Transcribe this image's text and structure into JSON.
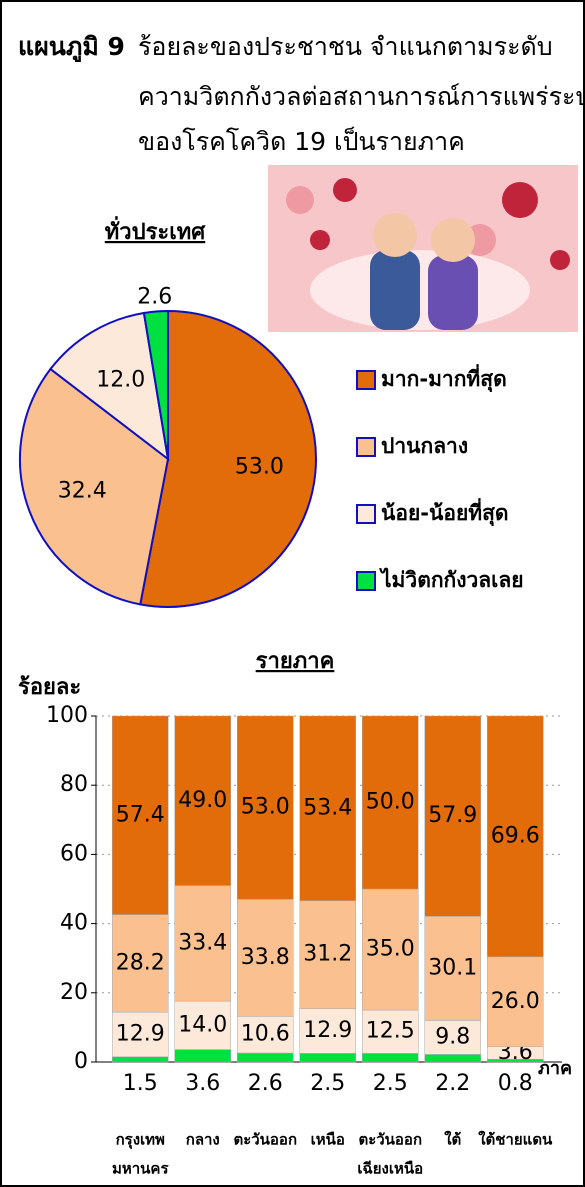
{
  "figure_label": "แผนภูมิ 9",
  "title": [
    "ร้อยละของประชาชน จำแนกตามระดับ",
    "ความวิตกกังวลต่อสถานการณ์การแพร่ระบาด",
    "ของโรคโควิด 19 เป็นรายภาค"
  ],
  "chart_data": [
    {
      "type": "pie",
      "title": "ทั่วประเทศ",
      "categories": [
        "มาก-มากที่สุด",
        "ปานกลาง",
        "น้อย-น้อยที่สุด",
        "ไม่วิตกกังวลเลย"
      ],
      "values": [
        53.0,
        32.4,
        12.0,
        2.6
      ],
      "value_labels": [
        "53.0",
        "32.4",
        "12.0",
        "2.6"
      ],
      "colors": [
        "#e26b0a",
        "#fac090",
        "#fde9d9",
        "#00e040"
      ]
    },
    {
      "type": "stacked_bar",
      "title": "รายภาค",
      "ylabel": "ร้อยละ",
      "xlabel": "ภาค",
      "categories": [
        [
          "กรุงเทพ",
          "มหานคร"
        ],
        [
          "กลาง"
        ],
        [
          "ตะวันออก"
        ],
        [
          "เหนือ"
        ],
        [
          "ตะวันออก",
          "เฉียงเหนือ"
        ],
        [
          "ใต้"
        ],
        [
          "ใต้ชายแดน"
        ]
      ],
      "series": [
        {
          "color": "#00e040",
          "values": [
            1.5,
            3.6,
            2.6,
            2.5,
            2.5,
            2.2,
            0.8
          ],
          "value_labels": [
            "1.5",
            "3.6",
            "2.6",
            "2.5",
            "2.5",
            "2.2",
            "0.8"
          ]
        },
        {
          "color": "#fde9d9",
          "values": [
            12.9,
            14.0,
            10.6,
            12.9,
            12.5,
            9.8,
            3.6
          ],
          "value_labels": [
            "12.9",
            "14.0",
            "10.6",
            "12.9",
            "12.5",
            "9.8",
            "3.6"
          ]
        },
        {
          "color": "#fac090",
          "values": [
            28.2,
            33.4,
            33.8,
            31.2,
            35.0,
            30.1,
            26.0
          ],
          "value_labels": [
            "28.2",
            "33.4",
            "33.8",
            "31.2",
            "35.0",
            "30.1",
            "26.0"
          ]
        },
        {
          "color": "#e26b0a",
          "values": [
            57.4,
            49.0,
            53.0,
            53.4,
            50.0,
            57.9,
            69.6
          ],
          "value_labels": [
            "57.4",
            "49.0",
            "53.0",
            "53.4",
            "50.0",
            "57.9",
            "69.6"
          ]
        }
      ],
      "ylim": [
        0,
        100
      ],
      "yticks": [
        0,
        20,
        40,
        60,
        80,
        100
      ],
      "grid": true
    }
  ]
}
